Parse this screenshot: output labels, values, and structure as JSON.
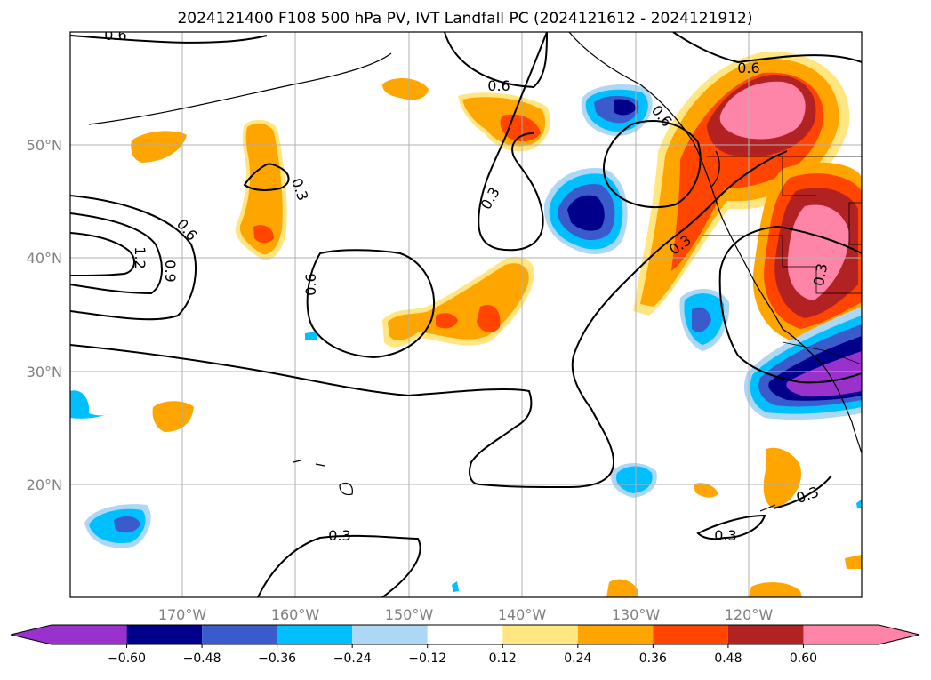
{
  "title": "2024121400 F108 500 hPa PV, IVT Landfall PC (2024121612 - 2024121912)",
  "map": {
    "projection": "PlateCarree",
    "lon_range": [
      -180,
      -110
    ],
    "lat_range": [
      10,
      60
    ],
    "grid": true,
    "lon_ticks": [
      {
        "lon": -170,
        "label": "170°W"
      },
      {
        "lon": -160,
        "label": "160°W"
      },
      {
        "lon": -150,
        "label": "150°W"
      },
      {
        "lon": -140,
        "label": "140°W"
      },
      {
        "lon": -130,
        "label": "130°W"
      },
      {
        "lon": -120,
        "label": "120°W"
      }
    ],
    "lat_ticks": [
      {
        "lat": 20,
        "label": "20°N"
      },
      {
        "lat": 30,
        "label": "30°N"
      },
      {
        "lat": 40,
        "label": "40°N"
      },
      {
        "lat": 50,
        "label": "50°N"
      }
    ],
    "contour_labels": [
      "0.6",
      "0.6",
      "0.3",
      "0.6",
      "0.6",
      "1.2",
      "0.9",
      "0.6",
      "0.3",
      "0.3",
      "0.3",
      "0.3",
      "0.3",
      "0.3",
      "0.6"
    ]
  },
  "colorbar": {
    "extend": "both",
    "levels": [
      "-0.60",
      "-0.48",
      "-0.36",
      "-0.24",
      "-0.12",
      "0.12",
      "0.24",
      "0.36",
      "0.48",
      "0.60"
    ],
    "colors": [
      "#9932cc",
      "#00008b",
      "#3a5bcc",
      "#00bfff",
      "#add8f5",
      "#ffffff",
      "#ffe680",
      "#ffa500",
      "#ff4500",
      "#b22222",
      "#ff85a8"
    ]
  }
}
